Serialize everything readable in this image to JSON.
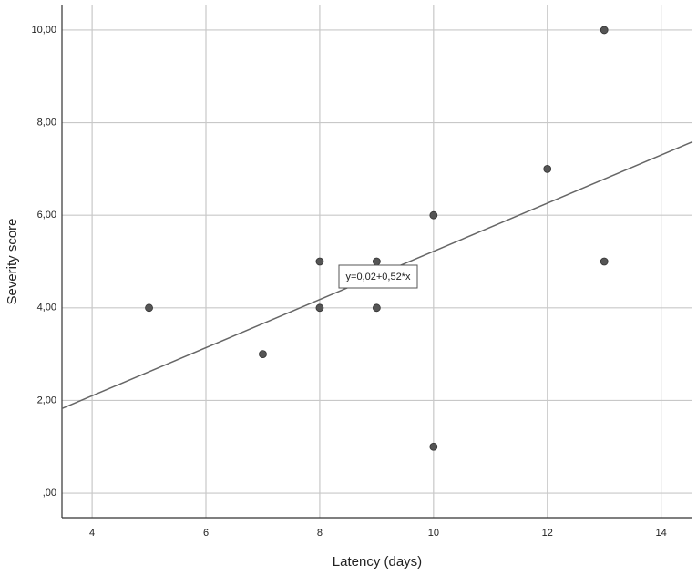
{
  "chart_data": {
    "type": "scatter",
    "x_label": "Latency (days)",
    "y_label": "Severity score",
    "x": [
      5,
      7,
      8,
      8,
      9,
      9,
      10,
      10,
      12,
      13,
      13
    ],
    "values": [
      4,
      3,
      5,
      4,
      5,
      4,
      6,
      1,
      7,
      10,
      5
    ],
    "color": "#555555",
    "fit": {
      "intercept": 0.02,
      "slope": 0.52,
      "label": "y=0,02+0,52*x",
      "color": "#666666"
    },
    "xlim": [
      3.47,
      14.55
    ],
    "ylim": [
      -0.53,
      10.55
    ],
    "xticks": [
      4,
      6,
      8,
      10,
      12,
      14
    ],
    "yticks": [
      {
        "value": 0,
        "label": ",00"
      },
      {
        "value": 2,
        "label": "2,00"
      },
      {
        "value": 4,
        "label": "4,00"
      },
      {
        "value": 6,
        "label": "6,00"
      },
      {
        "value": 8,
        "label": "8,00"
      },
      {
        "value": 10,
        "label": "10,00"
      }
    ],
    "grid": true
  }
}
